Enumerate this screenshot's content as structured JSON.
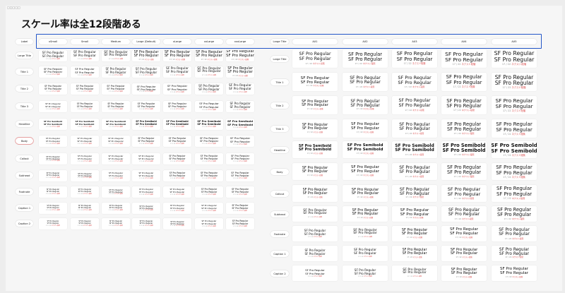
{
  "frame_tag": "□□□□□",
  "title": "スケール率は全12段階ある",
  "left": {
    "header_label": "Label",
    "columns": [
      "xSmall",
      "Small",
      "Medium",
      "Large (Default)",
      "xLarge",
      "xxLarge",
      "xxxLarge"
    ],
    "rows": [
      "Large Title",
      "Title 1",
      "Title 2",
      "Title 3",
      "Headline",
      "Body",
      "Callout",
      "Subhead",
      "Footnote",
      "Caption 1",
      "Caption 2"
    ],
    "selected_row": "Body"
  },
  "right": {
    "header_label": "Large Title",
    "columns": [
      "AX1",
      "AX2",
      "AX3",
      "AX4",
      "AX5"
    ],
    "rows": [
      "Large Title",
      "Title 1",
      "Title 2",
      "Title 3",
      "Headline",
      "Body",
      "Callout",
      "Subhead",
      "Footnote",
      "Caption 1",
      "Caption 2"
    ]
  },
  "cell_text": {
    "regular": "SF Pro Regular",
    "semibold": "SF Pro Semibold",
    "meta_size": "17 / 22",
    "meta_link": "ネクスト段階"
  }
}
